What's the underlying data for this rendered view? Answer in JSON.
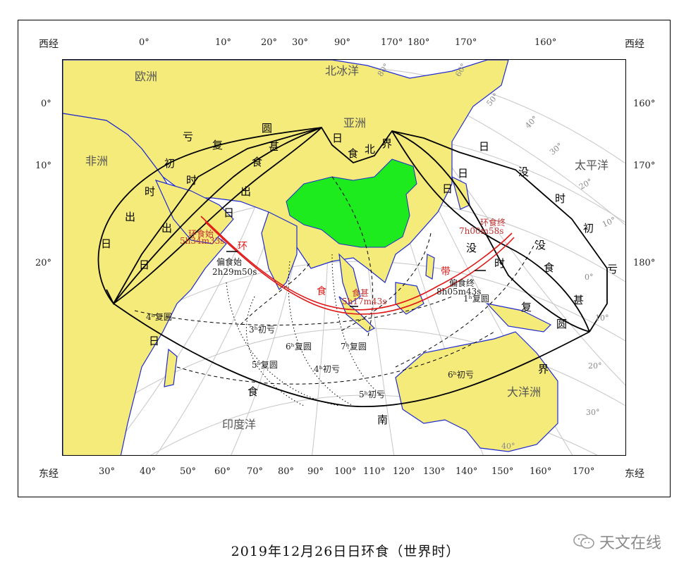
{
  "edge_labels": {
    "top_left": "西经",
    "top_right": "西经",
    "bottom_left": "东经",
    "bottom_right": "东经"
  },
  "top_lon": [
    "0°",
    "10°",
    "20°",
    "30°",
    "90°",
    "170°",
    "180°",
    "170°",
    "160°"
  ],
  "bottom_lon": [
    "30°",
    "40°",
    "50°",
    "60°",
    "70°",
    "80°",
    "90°",
    "100°",
    "110°",
    "120°",
    "130°",
    "140°",
    "150°",
    "160°",
    "170°"
  ],
  "left_lat": [
    "0°",
    "10°",
    "20°"
  ],
  "right_lat": [
    "160°",
    "170°",
    "180°"
  ],
  "regions": {
    "europe": "欧洲",
    "arctic": "北冰洋",
    "africa": "非洲",
    "asia": "亚洲",
    "pacific": "太平洋",
    "indian": "印度洋",
    "oceania": "大洋洲"
  },
  "inner_lat": [
    "60°",
    "80°",
    "50°",
    "40°",
    "30°",
    "20°",
    "10°",
    "0°",
    "10°",
    "20°",
    "30°",
    "40°"
  ],
  "boundary_chars": {
    "north_limit": [
      "日",
      "食",
      "北",
      "界"
    ],
    "south_limit": [
      "日",
      "食",
      "南",
      "界"
    ],
    "sunrise_begin": [
      "日",
      "出",
      "时",
      "初",
      "亏"
    ],
    "sunrise_end": [
      "日",
      "出",
      "时",
      "复",
      "圆"
    ],
    "sunrise_max": [
      "日",
      "出",
      "食",
      "甚"
    ],
    "sunset_begin": [
      "日",
      "没",
      "时",
      "初",
      "亏"
    ],
    "sunset_end": [
      "日",
      "没",
      "时",
      "复",
      "圆"
    ],
    "sunset_max": [
      "日",
      "没",
      "食",
      "甚"
    ],
    "annular_band": [
      "环",
      "食",
      "带"
    ]
  },
  "events": {
    "annular_start": "环食始",
    "annular_start_time": "5h34m33s",
    "partial_start": "偏食始",
    "partial_start_time": "2h29m50s",
    "greatest": "食甚",
    "greatest_time": "5h17m43s",
    "partial_end": "偏食终",
    "partial_end_time": "8h05m43s",
    "annular_end": "环食终",
    "annular_end_time": "7h00m58s"
  },
  "contacts": {
    "c1": "1ʰ复圆",
    "c3": "3ʰ初亏",
    "c4a": "4ʰ复圆",
    "c4b": "4ʰ初亏",
    "c5a": "5ʰ复圆",
    "c5b": "5ʰ初亏",
    "c6a": "6ʰ复圆",
    "c6b": "6ʰ初亏",
    "c7": "7ʰ复圆"
  },
  "caption": "2019年12月26日日环食（世界时）",
  "watermark": "天文在线",
  "colors": {
    "land": "#f5eb7a",
    "china": "#1eeb1e",
    "coast": "#1f2bd0",
    "path": "#e01818",
    "label": "#c03030",
    "grid": "#c6c6c6"
  }
}
